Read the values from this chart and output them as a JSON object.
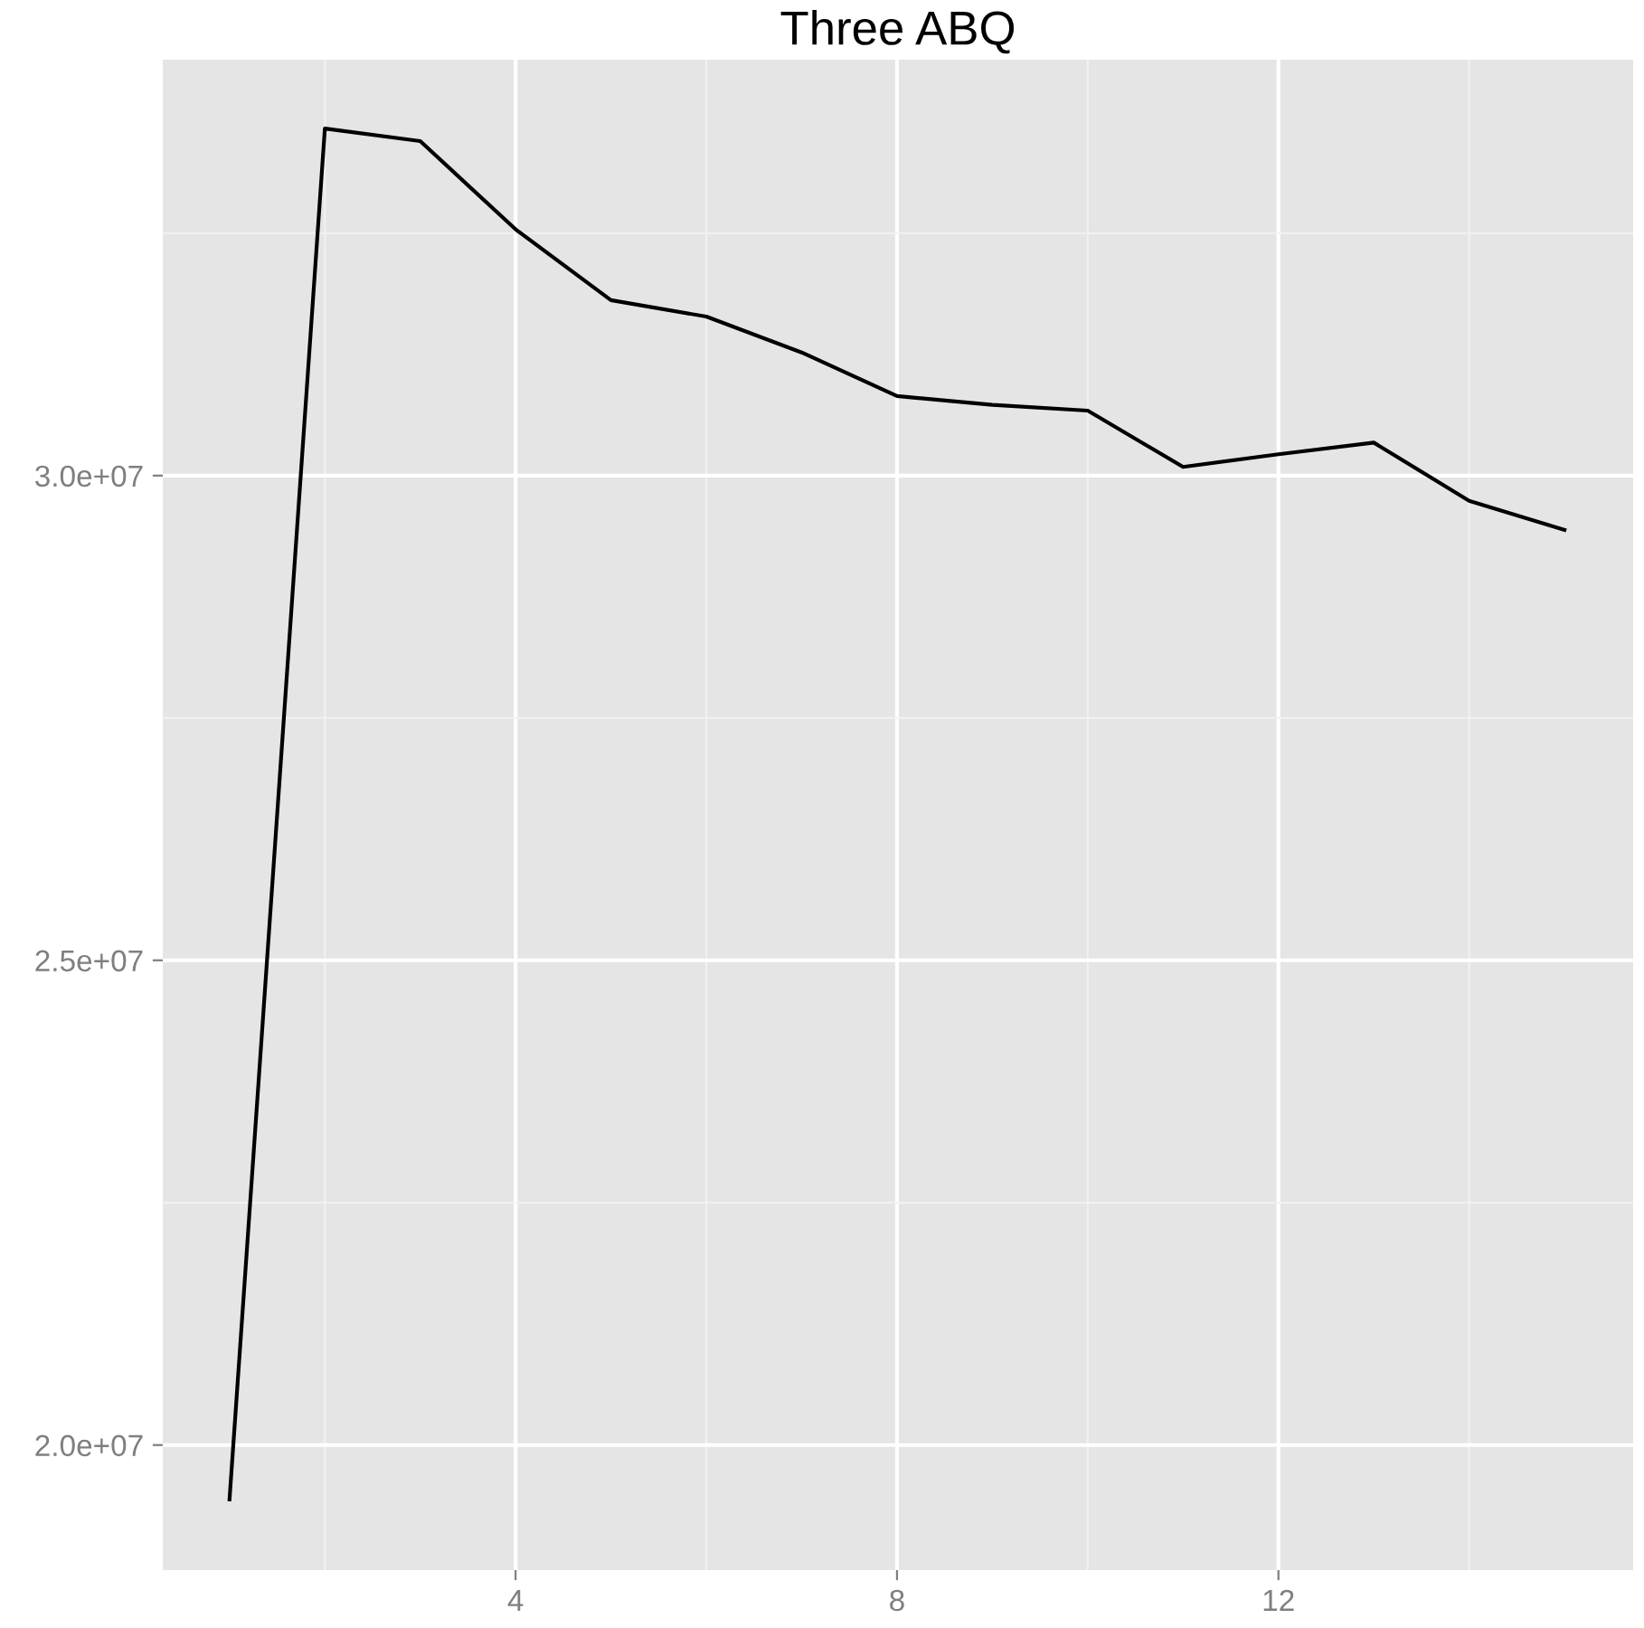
{
  "chart_data": {
    "type": "line",
    "title": "Three ABQ",
    "x": [
      1,
      2,
      3,
      4,
      5,
      6,
      7,
      8,
      9,
      10,
      11,
      12,
      13,
      14,
      15
    ],
    "series": [
      {
        "color": "#000000",
        "values": [
          19440000,
          33580000,
          33450000,
          32540000,
          31810000,
          31640000,
          31270000,
          30820000,
          30730000,
          30670000,
          30090000,
          30220000,
          30340000,
          29740000,
          29440000
        ]
      }
    ],
    "xlim": [
      0.3,
      15.72
    ],
    "xticks": [
      {
        "value": 2,
        "label": null
      },
      {
        "value": 4,
        "label": "4"
      },
      {
        "value": 6,
        "label": null
      },
      {
        "value": 8,
        "label": "8"
      },
      {
        "value": 10,
        "label": null
      },
      {
        "value": 12,
        "label": "12"
      },
      {
        "value": 14,
        "label": null
      }
    ],
    "ylim": [
      18710000,
      34290000
    ],
    "yticks": [
      {
        "value": 20000000,
        "label": "2.0e+07"
      },
      {
        "value": 22500000,
        "label": null
      },
      {
        "value": 25000000,
        "label": "2.5e+07"
      },
      {
        "value": 27500000,
        "label": null
      },
      {
        "value": 30000000,
        "label": "3.0e+07"
      },
      {
        "value": 32500000,
        "label": null
      }
    ],
    "grid": true,
    "marker": "none",
    "line_style": "solid"
  }
}
